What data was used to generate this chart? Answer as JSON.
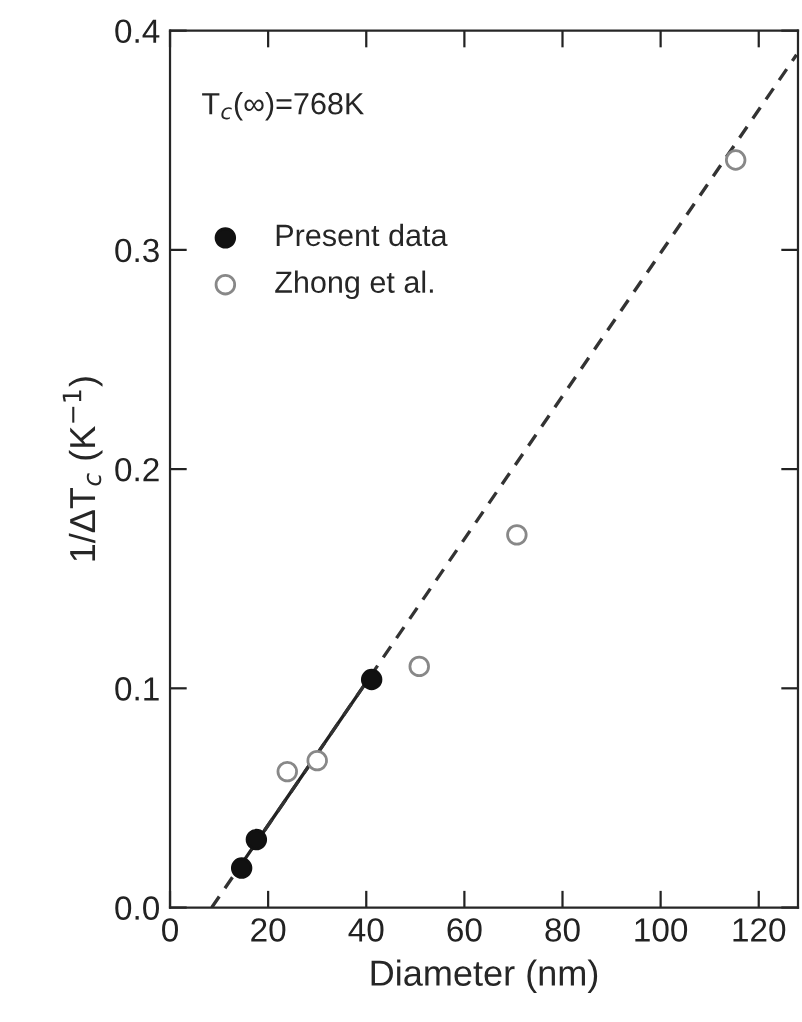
{
  "chart_data": {
    "type": "scatter",
    "xlabel": "Diameter (nm)",
    "ylabel": "1/ΔT$_{c}$ (K$^{−1}$)",
    "annotations": [
      "T$_{c}$(∞)=768K"
    ],
    "xlim": [
      0,
      128
    ],
    "xticks": [
      0,
      20,
      40,
      60,
      80,
      100,
      120
    ],
    "ylim": [
      0,
      0.4
    ],
    "yticks": [
      {
        "value": 0,
        "label": "0.0"
      },
      0.1,
      0.2,
      0.3,
      0.4
    ],
    "grid": false,
    "legend": "top left",
    "series": [
      {
        "name": "Present data",
        "type": "scatter",
        "marker": "circle",
        "color": "#111111",
        "x": [
          14.6,
          17.6,
          41.1
        ],
        "values": [
          0.018,
          0.031,
          0.104
        ]
      },
      {
        "name": "Zhong et al.",
        "type": "scatter",
        "marker": "circle",
        "color": "#888888",
        "x": [
          23.9,
          30,
          50.8,
          70.7,
          115.3
        ],
        "values": [
          0.062,
          0.067,
          0.11,
          0.17,
          0.341
        ]
      },
      {
        "type": "line",
        "color": "#222222",
        "line_style": "solid",
        "x": [
          14,
          41
        ],
        "values": [
          0.018,
          0.106
        ]
      },
      {
        "type": "line",
        "color": "#333333",
        "line_style": "dashed",
        "x": [
          8.5,
          127.7
        ],
        "values": [
          0,
          0.389
        ]
      }
    ]
  }
}
